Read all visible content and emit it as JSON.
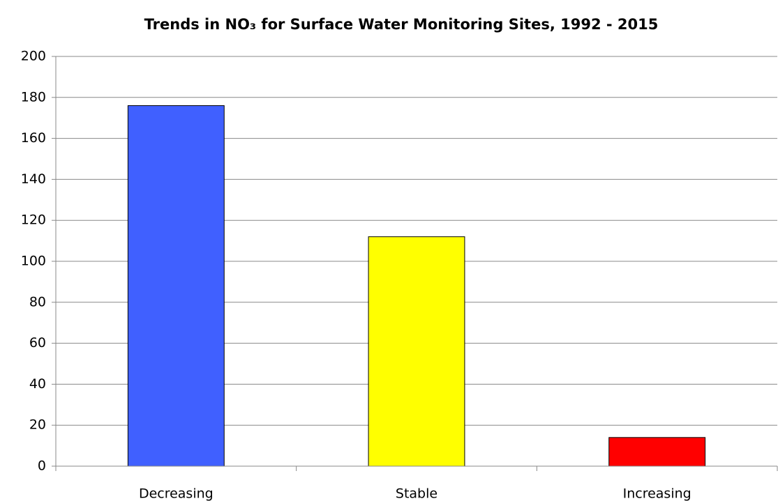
{
  "chart_data": {
    "type": "bar",
    "title": "Trends in NO₃ for Surface Water Monitoring Sites, 1992 - 2015",
    "categories": [
      "Decreasing",
      "Stable",
      "Increasing"
    ],
    "values": [
      176,
      112,
      14
    ],
    "colors": [
      "#4060ff",
      "#ffff00",
      "#ff0000"
    ],
    "ylim": [
      0,
      200
    ],
    "yticks": [
      0,
      20,
      40,
      60,
      80,
      100,
      120,
      140,
      160,
      180,
      200
    ],
    "grid": true
  }
}
